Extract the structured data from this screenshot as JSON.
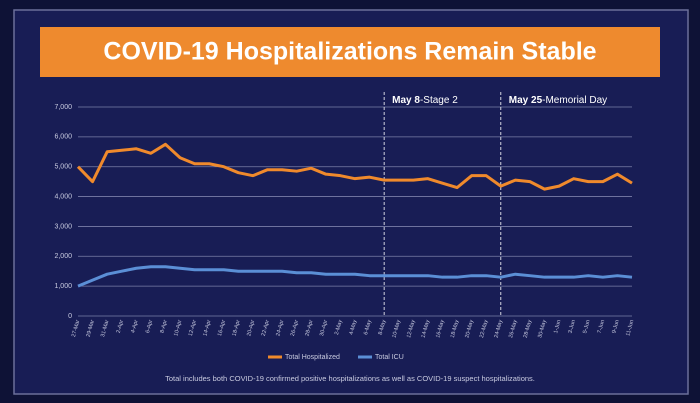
{
  "chart_data": {
    "type": "line",
    "title": "COVID-19 Hospitalizations Remain Stable",
    "categories": [
      "27-Mar",
      "29-Mar",
      "31-Mar",
      "2-Apr",
      "4-Apr",
      "6-Apr",
      "8-Apr",
      "10-Apr",
      "12-Apr",
      "14-Apr",
      "16-Apr",
      "18-Apr",
      "20-Apr",
      "22-Apr",
      "24-Apr",
      "26-Apr",
      "28-Apr",
      "30-Apr",
      "2-May",
      "4-May",
      "6-May",
      "8-May",
      "10-May",
      "12-May",
      "14-May",
      "16-May",
      "18-May",
      "20-May",
      "22-May",
      "24-May",
      "26-May",
      "28-May",
      "30-May",
      "1-Jun",
      "3-Jun",
      "5-Jun",
      "7-Jun",
      "9-Jun",
      "11-Jun"
    ],
    "series": [
      {
        "name": "Total Hospitalized",
        "color": "#f08a2c",
        "values": [
          5000,
          4500,
          5500,
          5550,
          5600,
          5450,
          5750,
          5300,
          5100,
          5100,
          5000,
          4800,
          4700,
          4900,
          4900,
          4850,
          4950,
          4750,
          4700,
          4600,
          4650,
          4550,
          4550,
          4550,
          4600,
          4450,
          4300,
          4700,
          4700,
          4350,
          4550,
          4500,
          4250,
          4350,
          4600,
          4500,
          4500,
          4750,
          4450
        ]
      },
      {
        "name": "Total ICU",
        "color": "#5b8fd6",
        "values": [
          1000,
          1200,
          1400,
          1500,
          1600,
          1650,
          1650,
          1600,
          1550,
          1550,
          1550,
          1500,
          1500,
          1500,
          1500,
          1450,
          1450,
          1400,
          1400,
          1400,
          1350,
          1350,
          1350,
          1350,
          1350,
          1300,
          1300,
          1350,
          1350,
          1300,
          1400,
          1350,
          1300,
          1300,
          1300,
          1350,
          1300,
          1350,
          1300
        ]
      }
    ],
    "ylim": [
      0,
      7000
    ],
    "yticks": [
      0,
      {
        "value": 1000,
        "label": "1,000"
      },
      {
        "value": 2000,
        "label": "2,000"
      },
      {
        "value": 3000,
        "label": "3,000"
      },
      {
        "value": 4000,
        "label": "4,000"
      },
      {
        "value": 5000,
        "label": "5,000"
      },
      {
        "value": 6000,
        "label": "6,000"
      },
      {
        "value": 7000,
        "label": "7,000"
      }
    ],
    "grid": true,
    "legend": "bottom",
    "annotations": [
      {
        "x": "8-May",
        "bold": "May 8",
        "text": "-Stage 2"
      },
      {
        "x": "24-May",
        "bold": "May 25",
        "text": "-Memorial Day"
      }
    ],
    "footnote": "Total includes both COVID-19 confirmed positive hospitalizations as well as COVID-19 suspect hospitalizations."
  }
}
